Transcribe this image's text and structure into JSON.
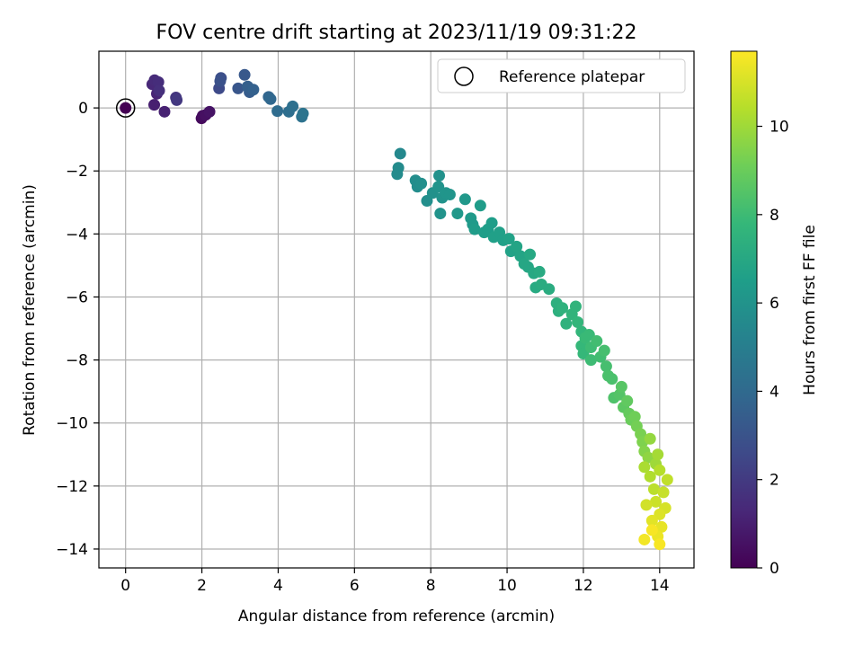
{
  "chart_data": {
    "type": "scatter",
    "title": "FOV centre drift starting at 2023/11/19 09:31:22",
    "xlabel": "Angular distance from reference (arcmin)",
    "ylabel": "Rotation from reference (arcmin)",
    "xlim": [
      -0.7,
      14.9
    ],
    "ylim": [
      -14.6,
      1.8
    ],
    "xticks": [
      0,
      2,
      4,
      6,
      8,
      10,
      12,
      14
    ],
    "yticks": [
      0,
      -2,
      -4,
      -6,
      -8,
      -10,
      -12,
      -14
    ],
    "grid": true,
    "legend": {
      "placement": "top-right",
      "entries": [
        "Reference platepar"
      ]
    },
    "colorbar": {
      "label": "Hours from first FF file",
      "colormap": "viridis",
      "range": [
        0,
        11.7
      ],
      "ticks": [
        0,
        2,
        4,
        6,
        8,
        10
      ]
    },
    "reference_point": {
      "x": 0,
      "y": 0
    },
    "points": [
      {
        "x": 0,
        "y": 0,
        "t": 0
      },
      {
        "x": 1.99,
        "y": -0.33,
        "t": 0.3
      },
      {
        "x": 2.02,
        "y": -0.25,
        "t": 0.4
      },
      {
        "x": 2.1,
        "y": -0.22,
        "t": 0.5
      },
      {
        "x": 2.2,
        "y": -0.12,
        "t": 0.6
      },
      {
        "x": 0.75,
        "y": 0.1,
        "t": 1.0
      },
      {
        "x": 1.02,
        "y": -0.12,
        "t": 1.1
      },
      {
        "x": 0.82,
        "y": 0.45,
        "t": 1.2
      },
      {
        "x": 0.7,
        "y": 0.75,
        "t": 1.3
      },
      {
        "x": 0.76,
        "y": 0.88,
        "t": 1.4
      },
      {
        "x": 0.86,
        "y": 0.82,
        "t": 1.5
      },
      {
        "x": 0.88,
        "y": 0.55,
        "t": 1.6
      },
      {
        "x": 1.32,
        "y": 0.33,
        "t": 1.8
      },
      {
        "x": 1.34,
        "y": 0.25,
        "t": 1.9
      },
      {
        "x": 2.45,
        "y": 0.62,
        "t": 2.6
      },
      {
        "x": 2.5,
        "y": 0.95,
        "t": 2.8
      },
      {
        "x": 2.48,
        "y": 0.85,
        "t": 2.9
      },
      {
        "x": 2.95,
        "y": 0.62,
        "t": 3.1
      },
      {
        "x": 3.12,
        "y": 1.05,
        "t": 3.2
      },
      {
        "x": 3.25,
        "y": 0.5,
        "t": 3.4
      },
      {
        "x": 3.2,
        "y": 0.68,
        "t": 3.5
      },
      {
        "x": 3.35,
        "y": 0.58,
        "t": 3.6
      },
      {
        "x": 3.75,
        "y": 0.35,
        "t": 3.8
      },
      {
        "x": 3.8,
        "y": 0.28,
        "t": 3.9
      },
      {
        "x": 3.98,
        "y": -0.1,
        "t": 4.1
      },
      {
        "x": 4.28,
        "y": -0.12,
        "t": 4.2
      },
      {
        "x": 4.38,
        "y": 0.05,
        "t": 4.3
      },
      {
        "x": 4.62,
        "y": -0.28,
        "t": 4.4
      },
      {
        "x": 4.65,
        "y": -0.18,
        "t": 4.5
      },
      {
        "x": 7.2,
        "y": -1.45,
        "t": 5.5
      },
      {
        "x": 7.15,
        "y": -1.9,
        "t": 5.6
      },
      {
        "x": 7.12,
        "y": -2.1,
        "t": 5.6
      },
      {
        "x": 7.6,
        "y": -2.3,
        "t": 5.7
      },
      {
        "x": 7.65,
        "y": -2.5,
        "t": 5.7
      },
      {
        "x": 7.75,
        "y": -2.4,
        "t": 5.8
      },
      {
        "x": 7.9,
        "y": -2.95,
        "t": 5.8
      },
      {
        "x": 8.05,
        "y": -2.7,
        "t": 5.9
      },
      {
        "x": 8.22,
        "y": -2.15,
        "t": 5.9
      },
      {
        "x": 8.2,
        "y": -2.5,
        "t": 6.0
      },
      {
        "x": 8.3,
        "y": -2.85,
        "t": 6.0
      },
      {
        "x": 8.25,
        "y": -3.35,
        "t": 6.0
      },
      {
        "x": 8.4,
        "y": -2.7,
        "t": 6.1
      },
      {
        "x": 8.5,
        "y": -2.75,
        "t": 6.1
      },
      {
        "x": 8.7,
        "y": -3.35,
        "t": 6.2
      },
      {
        "x": 8.9,
        "y": -2.9,
        "t": 6.2
      },
      {
        "x": 9.05,
        "y": -3.5,
        "t": 6.3
      },
      {
        "x": 9.1,
        "y": -3.7,
        "t": 6.3
      },
      {
        "x": 9.15,
        "y": -3.85,
        "t": 6.4
      },
      {
        "x": 9.3,
        "y": -3.1,
        "t": 6.4
      },
      {
        "x": 9.4,
        "y": -3.95,
        "t": 6.5
      },
      {
        "x": 9.5,
        "y": -3.85,
        "t": 6.5
      },
      {
        "x": 9.6,
        "y": -3.65,
        "t": 6.5
      },
      {
        "x": 9.65,
        "y": -4.1,
        "t": 6.6
      },
      {
        "x": 9.8,
        "y": -3.95,
        "t": 6.6
      },
      {
        "x": 9.9,
        "y": -4.2,
        "t": 6.6
      },
      {
        "x": 10.05,
        "y": -4.15,
        "t": 6.7
      },
      {
        "x": 10.1,
        "y": -4.55,
        "t": 6.7
      },
      {
        "x": 10.25,
        "y": -4.4,
        "t": 6.8
      },
      {
        "x": 10.35,
        "y": -4.7,
        "t": 6.8
      },
      {
        "x": 10.45,
        "y": -4.95,
        "t": 6.9
      },
      {
        "x": 10.55,
        "y": -5.05,
        "t": 6.9
      },
      {
        "x": 10.6,
        "y": -4.65,
        "t": 7.0
      },
      {
        "x": 10.7,
        "y": -5.25,
        "t": 7.0
      },
      {
        "x": 10.75,
        "y": -5.7,
        "t": 7.1
      },
      {
        "x": 10.85,
        "y": -5.2,
        "t": 7.1
      },
      {
        "x": 10.9,
        "y": -5.6,
        "t": 7.2
      },
      {
        "x": 11.1,
        "y": -5.75,
        "t": 7.2
      },
      {
        "x": 11.3,
        "y": -6.2,
        "t": 7.4
      },
      {
        "x": 11.35,
        "y": -6.45,
        "t": 7.4
      },
      {
        "x": 11.45,
        "y": -6.35,
        "t": 7.5
      },
      {
        "x": 11.55,
        "y": -6.85,
        "t": 7.5
      },
      {
        "x": 11.7,
        "y": -6.55,
        "t": 7.6
      },
      {
        "x": 11.8,
        "y": -6.3,
        "t": 7.6
      },
      {
        "x": 11.85,
        "y": -6.8,
        "t": 7.7
      },
      {
        "x": 11.95,
        "y": -7.1,
        "t": 7.7
      },
      {
        "x": 11.95,
        "y": -7.55,
        "t": 7.8
      },
      {
        "x": 12.0,
        "y": -7.8,
        "t": 7.8
      },
      {
        "x": 12.05,
        "y": -7.3,
        "t": 7.9
      },
      {
        "x": 12.15,
        "y": -7.2,
        "t": 7.9
      },
      {
        "x": 12.2,
        "y": -7.6,
        "t": 8.0
      },
      {
        "x": 12.2,
        "y": -8.0,
        "t": 8.0
      },
      {
        "x": 12.35,
        "y": -7.4,
        "t": 8.1
      },
      {
        "x": 12.45,
        "y": -7.9,
        "t": 8.1
      },
      {
        "x": 12.55,
        "y": -7.7,
        "t": 8.2
      },
      {
        "x": 12.6,
        "y": -8.2,
        "t": 8.2
      },
      {
        "x": 12.65,
        "y": -8.5,
        "t": 8.3
      },
      {
        "x": 12.75,
        "y": -8.6,
        "t": 8.3
      },
      {
        "x": 12.8,
        "y": -9.2,
        "t": 8.4
      },
      {
        "x": 12.95,
        "y": -9.1,
        "t": 8.5
      },
      {
        "x": 13.0,
        "y": -8.85,
        "t": 8.6
      },
      {
        "x": 13.05,
        "y": -9.5,
        "t": 8.7
      },
      {
        "x": 13.15,
        "y": -9.3,
        "t": 8.8
      },
      {
        "x": 13.2,
        "y": -9.7,
        "t": 8.9
      },
      {
        "x": 13.25,
        "y": -9.9,
        "t": 9.0
      },
      {
        "x": 13.35,
        "y": -9.8,
        "t": 9.1
      },
      {
        "x": 13.4,
        "y": -10.1,
        "t": 9.2
      },
      {
        "x": 13.5,
        "y": -10.35,
        "t": 9.3
      },
      {
        "x": 13.55,
        "y": -10.6,
        "t": 9.4
      },
      {
        "x": 13.6,
        "y": -10.9,
        "t": 9.5
      },
      {
        "x": 13.7,
        "y": -11.1,
        "t": 9.7
      },
      {
        "x": 13.75,
        "y": -10.5,
        "t": 9.8
      },
      {
        "x": 13.9,
        "y": -11.3,
        "t": 10.0
      },
      {
        "x": 13.95,
        "y": -11.0,
        "t": 10.1
      },
      {
        "x": 13.6,
        "y": -11.4,
        "t": 10.2
      },
      {
        "x": 13.75,
        "y": -11.7,
        "t": 10.3
      },
      {
        "x": 14.0,
        "y": -11.5,
        "t": 10.4
      },
      {
        "x": 13.85,
        "y": -12.1,
        "t": 10.5
      },
      {
        "x": 14.2,
        "y": -11.8,
        "t": 10.6
      },
      {
        "x": 14.1,
        "y": -12.2,
        "t": 10.7
      },
      {
        "x": 13.9,
        "y": -12.5,
        "t": 10.8
      },
      {
        "x": 13.65,
        "y": -12.6,
        "t": 10.9
      },
      {
        "x": 14.15,
        "y": -12.7,
        "t": 11.0
      },
      {
        "x": 14.0,
        "y": -12.9,
        "t": 11.1
      },
      {
        "x": 13.8,
        "y": -13.1,
        "t": 11.2
      },
      {
        "x": 14.05,
        "y": -13.3,
        "t": 11.3
      },
      {
        "x": 13.95,
        "y": -13.6,
        "t": 11.4
      },
      {
        "x": 13.6,
        "y": -13.7,
        "t": 11.5
      },
      {
        "x": 14.0,
        "y": -13.85,
        "t": 11.6
      },
      {
        "x": 13.8,
        "y": -13.4,
        "t": 11.6
      }
    ]
  }
}
